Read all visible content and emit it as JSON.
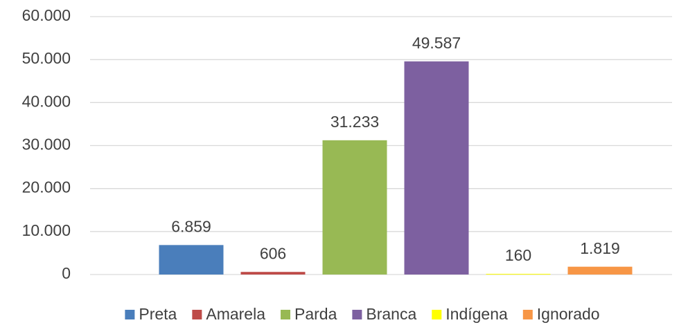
{
  "chart_data": {
    "type": "bar",
    "categories": [
      null
    ],
    "series": [
      {
        "name": "Preta",
        "color": "#4a7ebb",
        "values": [
          6859
        ],
        "value_labels": [
          "6.859"
        ]
      },
      {
        "name": "Amarela",
        "color": "#be4b48",
        "values": [
          606
        ]
      },
      {
        "name": "Parda",
        "color": "#98b954",
        "values": [
          31233
        ],
        "value_labels": [
          "31.233"
        ]
      },
      {
        "name": "Branca",
        "color": "#7d60a0",
        "values": [
          49587
        ],
        "value_labels": [
          "49.587"
        ]
      },
      {
        "name": "Indígena",
        "color": "#ffff00",
        "values": [
          160
        ]
      },
      {
        "name": "Ignorado",
        "color": "#f79646",
        "values": [
          1819
        ],
        "value_labels": [
          "1.819"
        ]
      }
    ],
    "ylim": [
      0,
      60000
    ],
    "yticks": [
      0,
      {
        "value": 10000,
        "label": "10.000"
      },
      {
        "value": 20000,
        "label": "20.000"
      },
      {
        "value": 30000,
        "label": "30.000"
      },
      {
        "value": 40000,
        "label": "40.000"
      },
      {
        "value": 50000,
        "label": "50.000"
      },
      {
        "value": 60000,
        "label": "60.000"
      }
    ],
    "grid": true,
    "legend": "bottom"
  }
}
